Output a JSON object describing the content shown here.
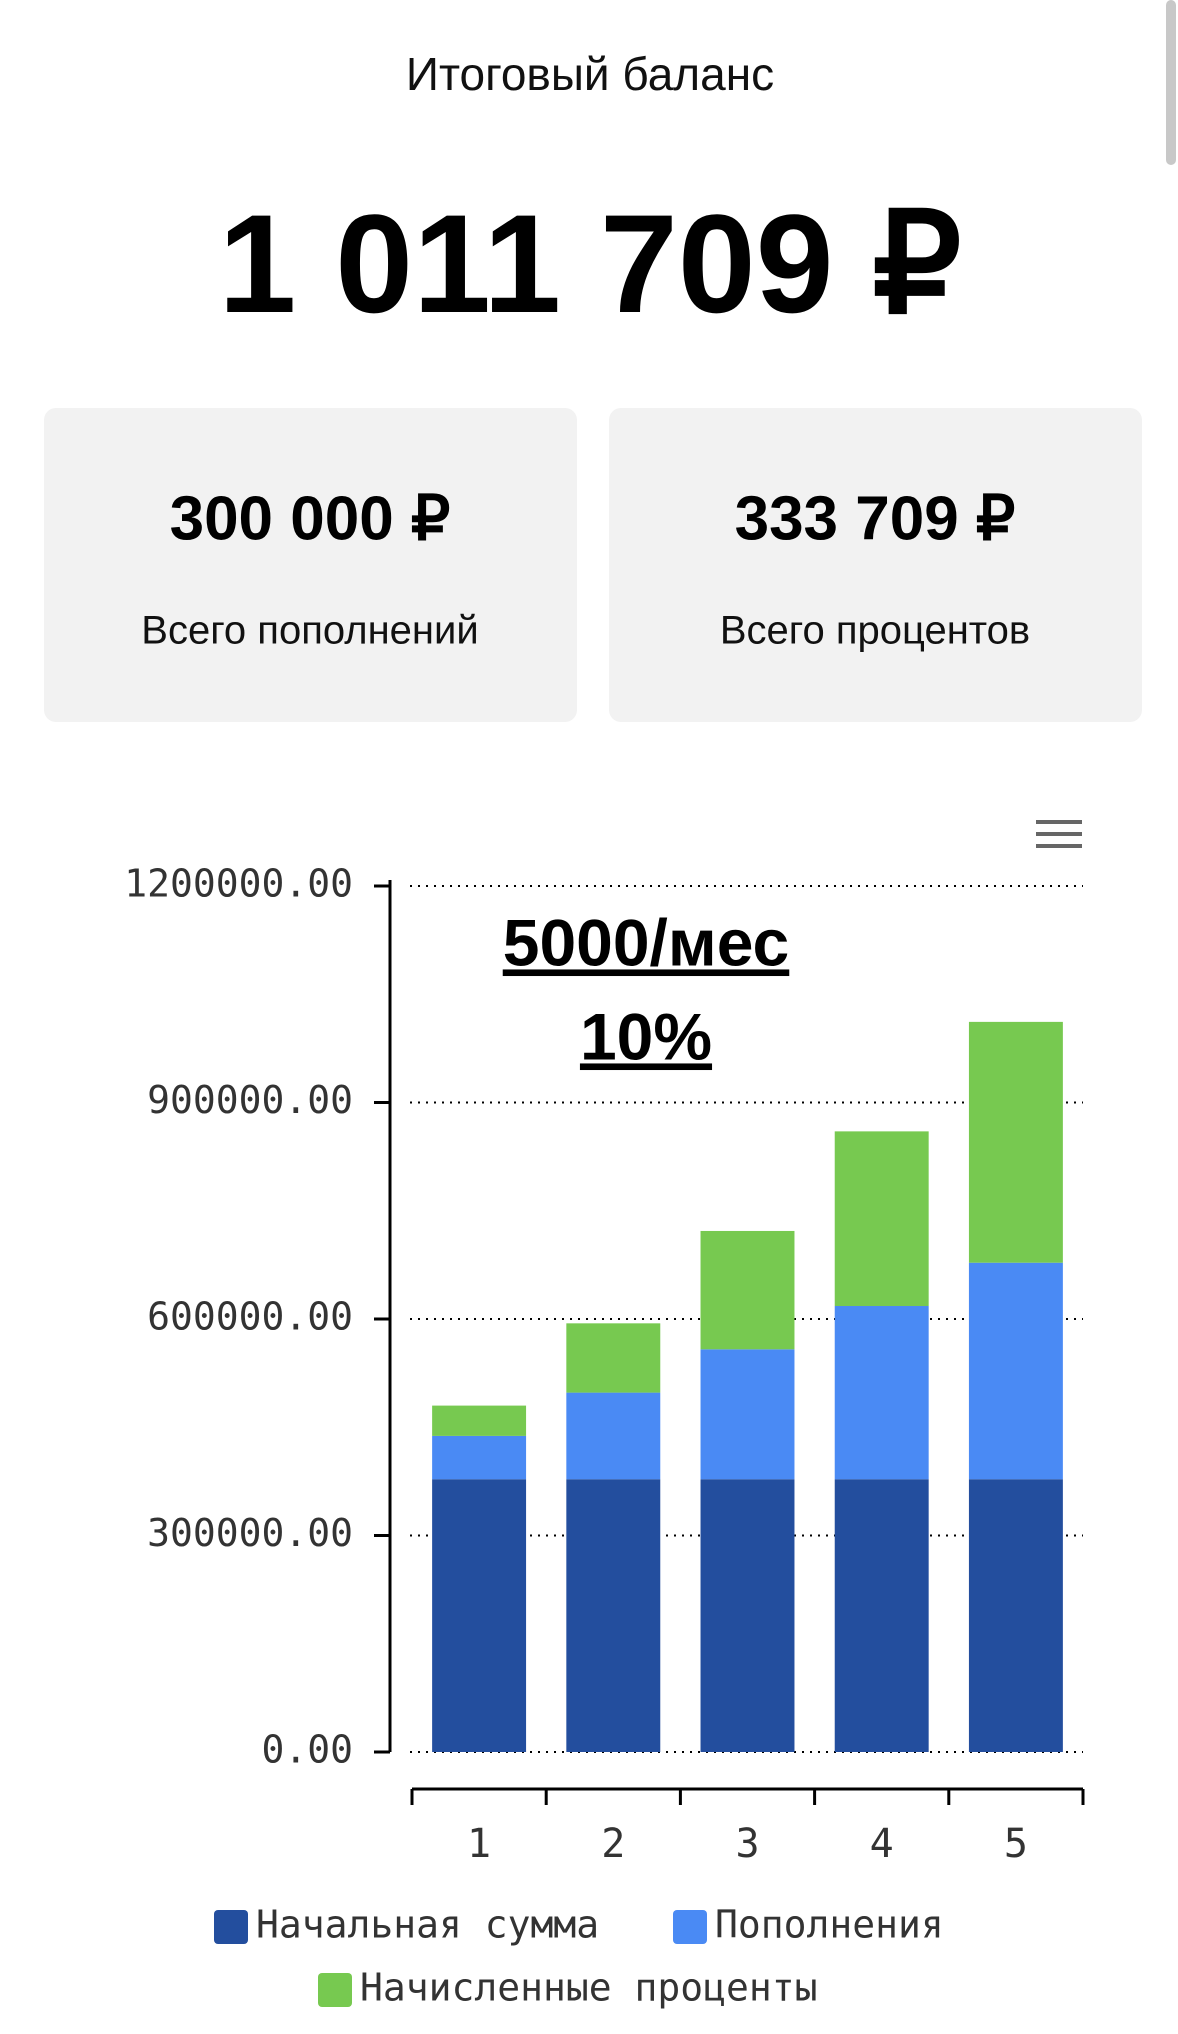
{
  "header": {
    "title": "Итоговый баланс",
    "total": "1 011 709 ₽"
  },
  "cards": [
    {
      "amount": "300 000 ₽",
      "label": "Всего пополнений"
    },
    {
      "amount": "333 709 ₽",
      "label": "Всего процентов"
    }
  ],
  "chart_data": {
    "type": "stacked_bar",
    "annotation": [
      "5000/мес",
      "10%"
    ],
    "categories": [
      "1",
      "2",
      "3",
      "4",
      "5"
    ],
    "series": [
      {
        "name": "Начальная сумма",
        "color": "#234e9e",
        "values": [
          378000,
          378000,
          378000,
          378000,
          378000
        ]
      },
      {
        "name": "Пополнения",
        "color": "#4a8af4",
        "values": [
          60000,
          120000,
          180000,
          240000,
          300000
        ]
      },
      {
        "name": "Начисленные проценты",
        "color": "#77c950",
        "values": [
          42000,
          96000,
          164000,
          242000,
          333709
        ]
      }
    ],
    "ylim": [
      0,
      1200000
    ],
    "yticks": [
      {
        "value": 0,
        "label": "0.00"
      },
      {
        "value": 300000,
        "label": "300000.00"
      },
      {
        "value": 600000,
        "label": "600000.00"
      },
      {
        "value": 900000,
        "label": "900000.00"
      },
      {
        "value": 1200000,
        "label": "1200000.00"
      }
    ],
    "grid": true
  }
}
